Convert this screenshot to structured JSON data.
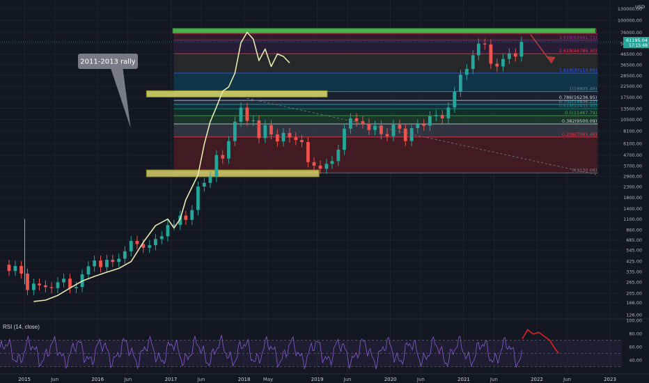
{
  "chart_data": {
    "type": "candlestick",
    "price_axis": {
      "unit": "USD",
      "ticks": [
        130000,
        100000,
        76000,
        59000,
        46500,
        36500,
        28500,
        22500,
        17500,
        13500,
        10500,
        8100,
        6100,
        4700,
        3700,
        2900,
        2300,
        1800,
        1400,
        1100,
        860,
        685,
        545,
        425,
        335,
        265,
        205,
        166,
        126
      ],
      "tick_labels": [
        "130000.00",
        "100000.00",
        "76000.00",
        "59000.00",
        "46500.00",
        "36500.00",
        "28500.00",
        "22500.00",
        "17500.00",
        "13500.00",
        "10500.00",
        "8100.00",
        "6100.00",
        "4700.00",
        "3700.00",
        "2900.00",
        "2300.00",
        "1800.00",
        "1400.00",
        "1100.00",
        "860.00",
        "685.00",
        "545.00",
        "425.00",
        "335.00",
        "265.00",
        "205.00",
        "166.00",
        "126.00"
      ],
      "scale": "log",
      "range": [
        118,
        146000
      ]
    },
    "time_axis": {
      "labels": [
        "2015",
        "Jun",
        "2016",
        "Jun",
        "2017",
        "Jun",
        "2018",
        "May",
        "2019",
        "Jun",
        "2020",
        "Jun",
        "2021",
        "Jun",
        "2022",
        "Jun",
        "2023"
      ],
      "range": [
        "2014-09-01",
        "2023-03-01"
      ]
    },
    "current_price_label": [
      "61195.04",
      "17:15:48"
    ],
    "btc_series": [
      [
        "2014-09",
        390
      ],
      [
        "2014-10",
        340
      ],
      [
        "2014-11",
        380
      ],
      [
        "2014-12",
        320
      ],
      [
        "2015-01",
        220
      ],
      [
        "2015-02",
        255
      ],
      [
        "2015-03",
        245
      ],
      [
        "2015-04",
        235
      ],
      [
        "2015-05",
        230
      ],
      [
        "2015-06",
        262
      ],
      [
        "2015-07",
        285
      ],
      [
        "2015-08",
        230
      ],
      [
        "2015-09",
        236
      ],
      [
        "2015-10",
        314
      ],
      [
        "2015-11",
        377
      ],
      [
        "2015-12",
        430
      ],
      [
        "2016-01",
        370
      ],
      [
        "2016-02",
        437
      ],
      [
        "2016-03",
        416
      ],
      [
        "2016-04",
        448
      ],
      [
        "2016-05",
        530
      ],
      [
        "2016-06",
        670
      ],
      [
        "2016-07",
        624
      ],
      [
        "2016-08",
        574
      ],
      [
        "2016-09",
        608
      ],
      [
        "2016-10",
        700
      ],
      [
        "2016-11",
        745
      ],
      [
        "2016-12",
        960
      ],
      [
        "2017-01",
        965
      ],
      [
        "2017-02",
        1190
      ],
      [
        "2017-03",
        1080
      ],
      [
        "2017-04",
        1350
      ],
      [
        "2017-05",
        2300
      ],
      [
        "2017-06",
        2500
      ],
      [
        "2017-07",
        2870
      ],
      [
        "2017-08",
        4700
      ],
      [
        "2017-09",
        4340
      ],
      [
        "2017-10",
        6450
      ],
      [
        "2017-11",
        10000
      ],
      [
        "2017-12",
        13800
      ],
      [
        "2018-01",
        10200
      ],
      [
        "2018-02",
        10300
      ],
      [
        "2018-03",
        6900
      ],
      [
        "2018-04",
        9250
      ],
      [
        "2018-05",
        7500
      ],
      [
        "2018-06",
        6400
      ],
      [
        "2018-07",
        7750
      ],
      [
        "2018-08",
        7000
      ],
      [
        "2018-09",
        6600
      ],
      [
        "2018-10",
        6300
      ],
      [
        "2018-11",
        4000
      ],
      [
        "2018-12",
        3700
      ],
      [
        "2019-01",
        3450
      ],
      [
        "2019-02",
        3850
      ],
      [
        "2019-03",
        4100
      ],
      [
        "2019-04",
        5300
      ],
      [
        "2019-05",
        8550
      ],
      [
        "2019-06",
        10800
      ],
      [
        "2019-07",
        10100
      ],
      [
        "2019-08",
        9600
      ],
      [
        "2019-09",
        8300
      ],
      [
        "2019-10",
        9150
      ],
      [
        "2019-11",
        7550
      ],
      [
        "2019-12",
        7200
      ],
      [
        "2020-01",
        9350
      ],
      [
        "2020-02",
        8550
      ],
      [
        "2020-03",
        6450
      ],
      [
        "2020-04",
        8650
      ],
      [
        "2020-05",
        9450
      ],
      [
        "2020-06",
        9150
      ],
      [
        "2020-07",
        11350
      ],
      [
        "2020-08",
        11650
      ],
      [
        "2020-09",
        10800
      ],
      [
        "2020-10",
        13800
      ],
      [
        "2020-11",
        19700
      ],
      [
        "2020-12",
        29000
      ],
      [
        "2021-01",
        33100
      ],
      [
        "2021-02",
        45200
      ],
      [
        "2021-03",
        58800
      ],
      [
        "2021-04",
        57700
      ],
      [
        "2021-05",
        37300
      ],
      [
        "2021-06",
        35000
      ],
      [
        "2021-07",
        41500
      ],
      [
        "2021-08",
        47100
      ],
      [
        "2021-09",
        43800
      ],
      [
        "2021-10",
        61200
      ]
    ],
    "overlay_series_2011_2013": [
      [
        "2015-02",
        170
      ],
      [
        "2015-04",
        175
      ],
      [
        "2015-06",
        195
      ],
      [
        "2015-08",
        230
      ],
      [
        "2015-10",
        270
      ],
      [
        "2015-12",
        300
      ],
      [
        "2016-02",
        330
      ],
      [
        "2016-04",
        360
      ],
      [
        "2016-06",
        420
      ],
      [
        "2016-08",
        650
      ],
      [
        "2016-10",
        950
      ],
      [
        "2016-12",
        1100
      ],
      [
        "2017-01",
        900
      ],
      [
        "2017-02",
        1100
      ],
      [
        "2017-03",
        1700
      ],
      [
        "2017-05",
        3000
      ],
      [
        "2017-06",
        6000
      ],
      [
        "2017-07",
        10000
      ],
      [
        "2017-08",
        14000
      ],
      [
        "2017-09",
        20000
      ],
      [
        "2017-10",
        22000
      ],
      [
        "2017-11",
        30000
      ],
      [
        "2017-12",
        60000
      ],
      [
        "2018-01",
        76000
      ],
      [
        "2018-02",
        65000
      ],
      [
        "2018-03",
        40000
      ],
      [
        "2018-04",
        52000
      ],
      [
        "2018-05",
        35000
      ],
      [
        "2018-06",
        46500
      ],
      [
        "2018-07",
        44000
      ],
      [
        "2018-08",
        38000
      ]
    ],
    "fib_levels": [
      {
        "label": "0(3130.08)",
        "value": 3130.08,
        "color": "#787b86"
      },
      {
        "label": "0.236(7065.48)",
        "value": 7065.48,
        "color": "#f23645"
      },
      {
        "label": "0.382(9500.09)",
        "value": 9500.09,
        "color": "#d1d4dc"
      },
      {
        "label": "0.5(11467.79)",
        "value": 11467.79,
        "color": "#4caf50"
      },
      {
        "label": "0.618(13435.49)",
        "value": 13435.49,
        "color": "#089981"
      },
      {
        "label": "0.702(14836.22)",
        "value": 14836.22,
        "color": "#00bcd4"
      },
      {
        "label": "0.786(16236.95)",
        "value": 16236.95,
        "color": "#d1d4dc"
      },
      {
        "label": "1(19805.49)",
        "value": 19805.49,
        "color": "#787b86"
      },
      {
        "label": "1.618(30110.89)",
        "value": 30110.89,
        "color": "#2962ff"
      },
      {
        "label": "2.618(46786.30)",
        "value": 46786.3,
        "color": "#f23645"
      },
      {
        "label": "3.618(63461.71)",
        "value": 63461.71,
        "color": "#9c27b0"
      },
      {
        "label": "4.236(73767.11)",
        "value": 73767.11,
        "color": "#e91e63"
      }
    ],
    "annotation": "2011-2013 rally",
    "rsi": {
      "title": "RSI (14, close)",
      "ticks": [
        100,
        80,
        60,
        40
      ],
      "tick_labels": [
        "100.00",
        "80.00",
        "60.00",
        "40.00"
      ],
      "band": [
        30,
        70
      ],
      "range": [
        20,
        100
      ],
      "projection": [
        [
          0,
          72
        ],
        [
          6,
          86
        ],
        [
          12,
          79
        ],
        [
          18,
          82
        ],
        [
          24,
          76
        ],
        [
          30,
          70
        ],
        [
          36,
          57
        ],
        [
          40,
          50
        ]
      ]
    },
    "colors": {
      "background": "#131722",
      "up": "#26a69a",
      "down": "#ef5350",
      "overlay": "#e6eab0",
      "highlight_green": "#4caf50",
      "highlight_yellow": "#dede6a",
      "rsi_line": "#7e57c2",
      "projection": "#ff1f1f",
      "arrow": "#b23a3a"
    }
  }
}
